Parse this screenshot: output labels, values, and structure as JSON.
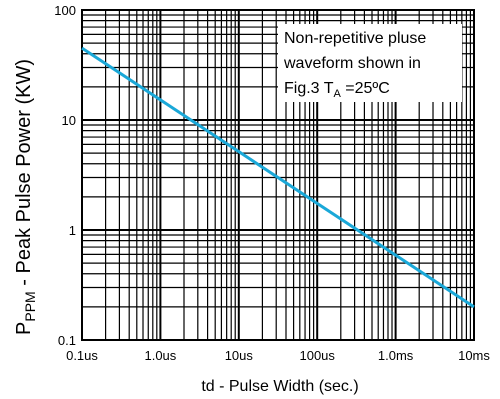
{
  "chart_data": {
    "type": "line",
    "x_scale": "log",
    "y_scale": "log",
    "xlim": [
      0.1,
      10000
    ],
    "ylim": [
      0.1,
      100
    ],
    "x_unit": "us",
    "x_ticks": [
      {
        "value": 0.1,
        "label": "0.1us"
      },
      {
        "value": 1,
        "label": "1.0us"
      },
      {
        "value": 10,
        "label": "10us"
      },
      {
        "value": 100,
        "label": "100us"
      },
      {
        "value": 1000,
        "label": "1.0ms"
      },
      {
        "value": 10000,
        "label": "10ms"
      }
    ],
    "y_ticks": [
      {
        "value": 0.1,
        "label": "0.1"
      },
      {
        "value": 1,
        "label": "1"
      },
      {
        "value": 10,
        "label": "10"
      },
      {
        "value": 100,
        "label": "100"
      }
    ],
    "xlabel": "td - Pulse Width (sec.)",
    "ylabel": {
      "main": "P",
      "sub": "PPM",
      "rest": " - Peak Pulse Power (KW)"
    },
    "annotation": {
      "line1": "Non-repetitive pluse",
      "line2": "waveform shown in",
      "line3_main": "Fig.3 T",
      "line3_sub": "A",
      "line3_rest": " =25ºC"
    },
    "grid": true,
    "series": [
      {
        "color": "#1aa8d8",
        "x": [
          0.1,
          10000
        ],
        "y": [
          45,
          0.2
        ]
      }
    ]
  }
}
